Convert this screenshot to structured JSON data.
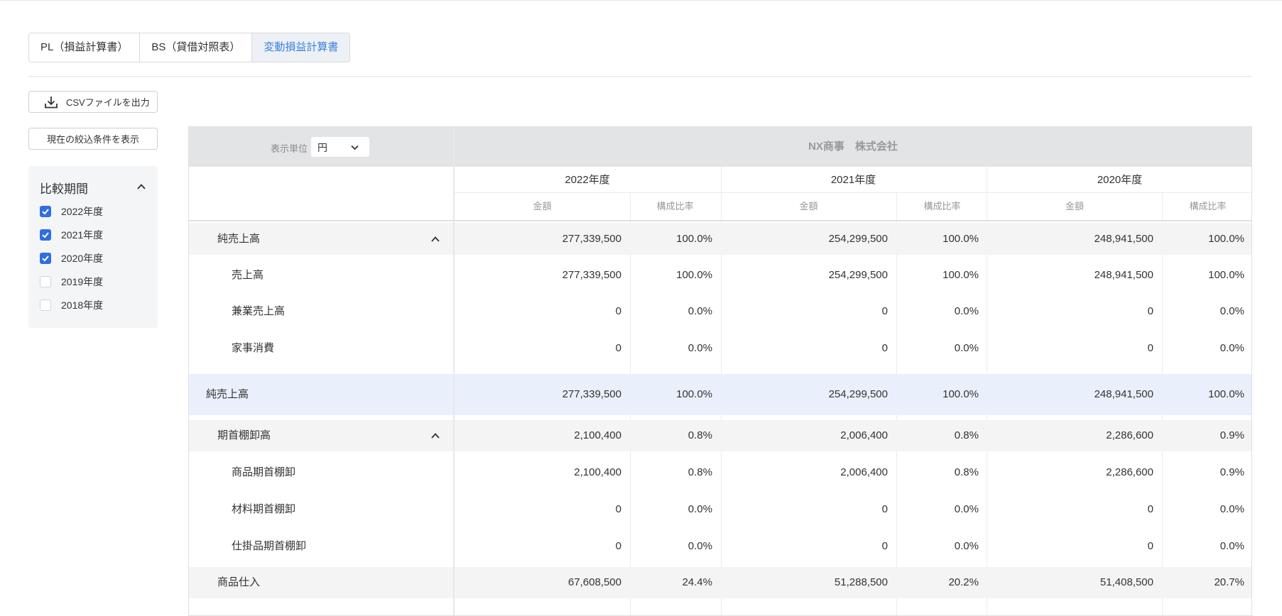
{
  "tabs": [
    {
      "label": "PL（損益計算書）",
      "active": false
    },
    {
      "label": "BS（貸借対照表）",
      "active": false
    },
    {
      "label": "変動損益計算書",
      "active": true
    }
  ],
  "buttons": {
    "csv_label": "CSVファイルを出力",
    "filter_label": "現在の絞込条件を表示"
  },
  "period": {
    "title": "比較期間",
    "options": [
      {
        "label": "2022年度",
        "checked": true
      },
      {
        "label": "2021年度",
        "checked": true
      },
      {
        "label": "2020年度",
        "checked": true
      },
      {
        "label": "2019年度",
        "checked": false
      },
      {
        "label": "2018年度",
        "checked": false
      }
    ]
  },
  "table": {
    "unit_label": "表示単位",
    "unit_value": "円",
    "company": "NX商事　株式会社",
    "years": [
      "2022年度",
      "2021年度",
      "2020年度"
    ],
    "sub_headers": {
      "amount": "金額",
      "ratio": "構成比率"
    },
    "rows": [
      {
        "label": "純売上高",
        "level": 1,
        "style": "gray",
        "collapsible": true,
        "values": [
          "277,339,500",
          "100.0%",
          "254,299,500",
          "100.0%",
          "248,941,500",
          "100.0%"
        ]
      },
      {
        "label": "売上高",
        "level": 2,
        "style": "white",
        "collapsible": false,
        "values": [
          "277,339,500",
          "100.0%",
          "254,299,500",
          "100.0%",
          "248,941,500",
          "100.0%"
        ]
      },
      {
        "label": "兼業売上高",
        "level": 2,
        "style": "white",
        "collapsible": false,
        "values": [
          "0",
          "0.0%",
          "0",
          "0.0%",
          "0",
          "0.0%"
        ]
      },
      {
        "label": "家事消費",
        "level": 2,
        "style": "white",
        "collapsible": false,
        "values": [
          "0",
          "0.0%",
          "0",
          "0.0%",
          "0",
          "0.0%"
        ]
      },
      {
        "label": "純売上高",
        "level": 0,
        "style": "blue",
        "collapsible": false,
        "values": [
          "277,339,500",
          "100.0%",
          "254,299,500",
          "100.0%",
          "248,941,500",
          "100.0%"
        ]
      },
      {
        "label": "期首棚卸高",
        "level": 1,
        "style": "gray",
        "collapsible": true,
        "values": [
          "2,100,400",
          "0.8%",
          "2,006,400",
          "0.8%",
          "2,286,600",
          "0.9%"
        ]
      },
      {
        "label": "商品期首棚卸",
        "level": 2,
        "style": "white",
        "collapsible": false,
        "values": [
          "2,100,400",
          "0.8%",
          "2,006,400",
          "0.8%",
          "2,286,600",
          "0.9%"
        ]
      },
      {
        "label": "材料期首棚卸",
        "level": 2,
        "style": "white",
        "collapsible": false,
        "values": [
          "0",
          "0.0%",
          "0",
          "0.0%",
          "0",
          "0.0%"
        ]
      },
      {
        "label": "仕掛品期首棚卸",
        "level": 2,
        "style": "white",
        "collapsible": false,
        "values": [
          "0",
          "0.0%",
          "0",
          "0.0%",
          "0",
          "0.0%"
        ]
      },
      {
        "label": "商品仕入",
        "level": 1,
        "style": "gray",
        "collapsible": false,
        "values": [
          "67,608,500",
          "24.4%",
          "51,288,500",
          "20.2%",
          "51,408,500",
          "20.7%"
        ]
      }
    ]
  },
  "colors": {
    "accent": "#2f6fe0",
    "active_tab_text": "#3a82e0",
    "header_bg": "#e3e4e6",
    "highlight_row": "#e9f0fb"
  },
  "icons": {
    "csv": "download-icon",
    "collapse": "chevron-up-icon",
    "unit_dropdown": "chevron-down-icon"
  }
}
